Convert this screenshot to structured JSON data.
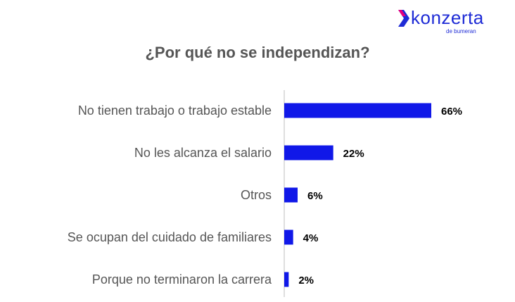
{
  "brand": {
    "name": "konzerta",
    "tagline": "de bumeran",
    "color": "#1e2bd6",
    "accent": "#e6007e"
  },
  "chart_data": {
    "type": "bar",
    "orientation": "horizontal",
    "title": "¿Por qué no se independizan?",
    "categories": [
      "No tienen trabajo o trabajo estable",
      "No les alcanza el salario",
      "Otros",
      "Se ocupan del cuidado de familiares",
      "Porque no terminaron la carrera"
    ],
    "values": [
      66,
      22,
      6,
      4,
      2
    ],
    "value_labels": [
      "66%",
      "22%",
      "6%",
      "4%",
      "2%"
    ],
    "unit": "%",
    "xlim": [
      0,
      66
    ],
    "bar_color": "#1018e8",
    "grid": false,
    "legend": "none"
  }
}
